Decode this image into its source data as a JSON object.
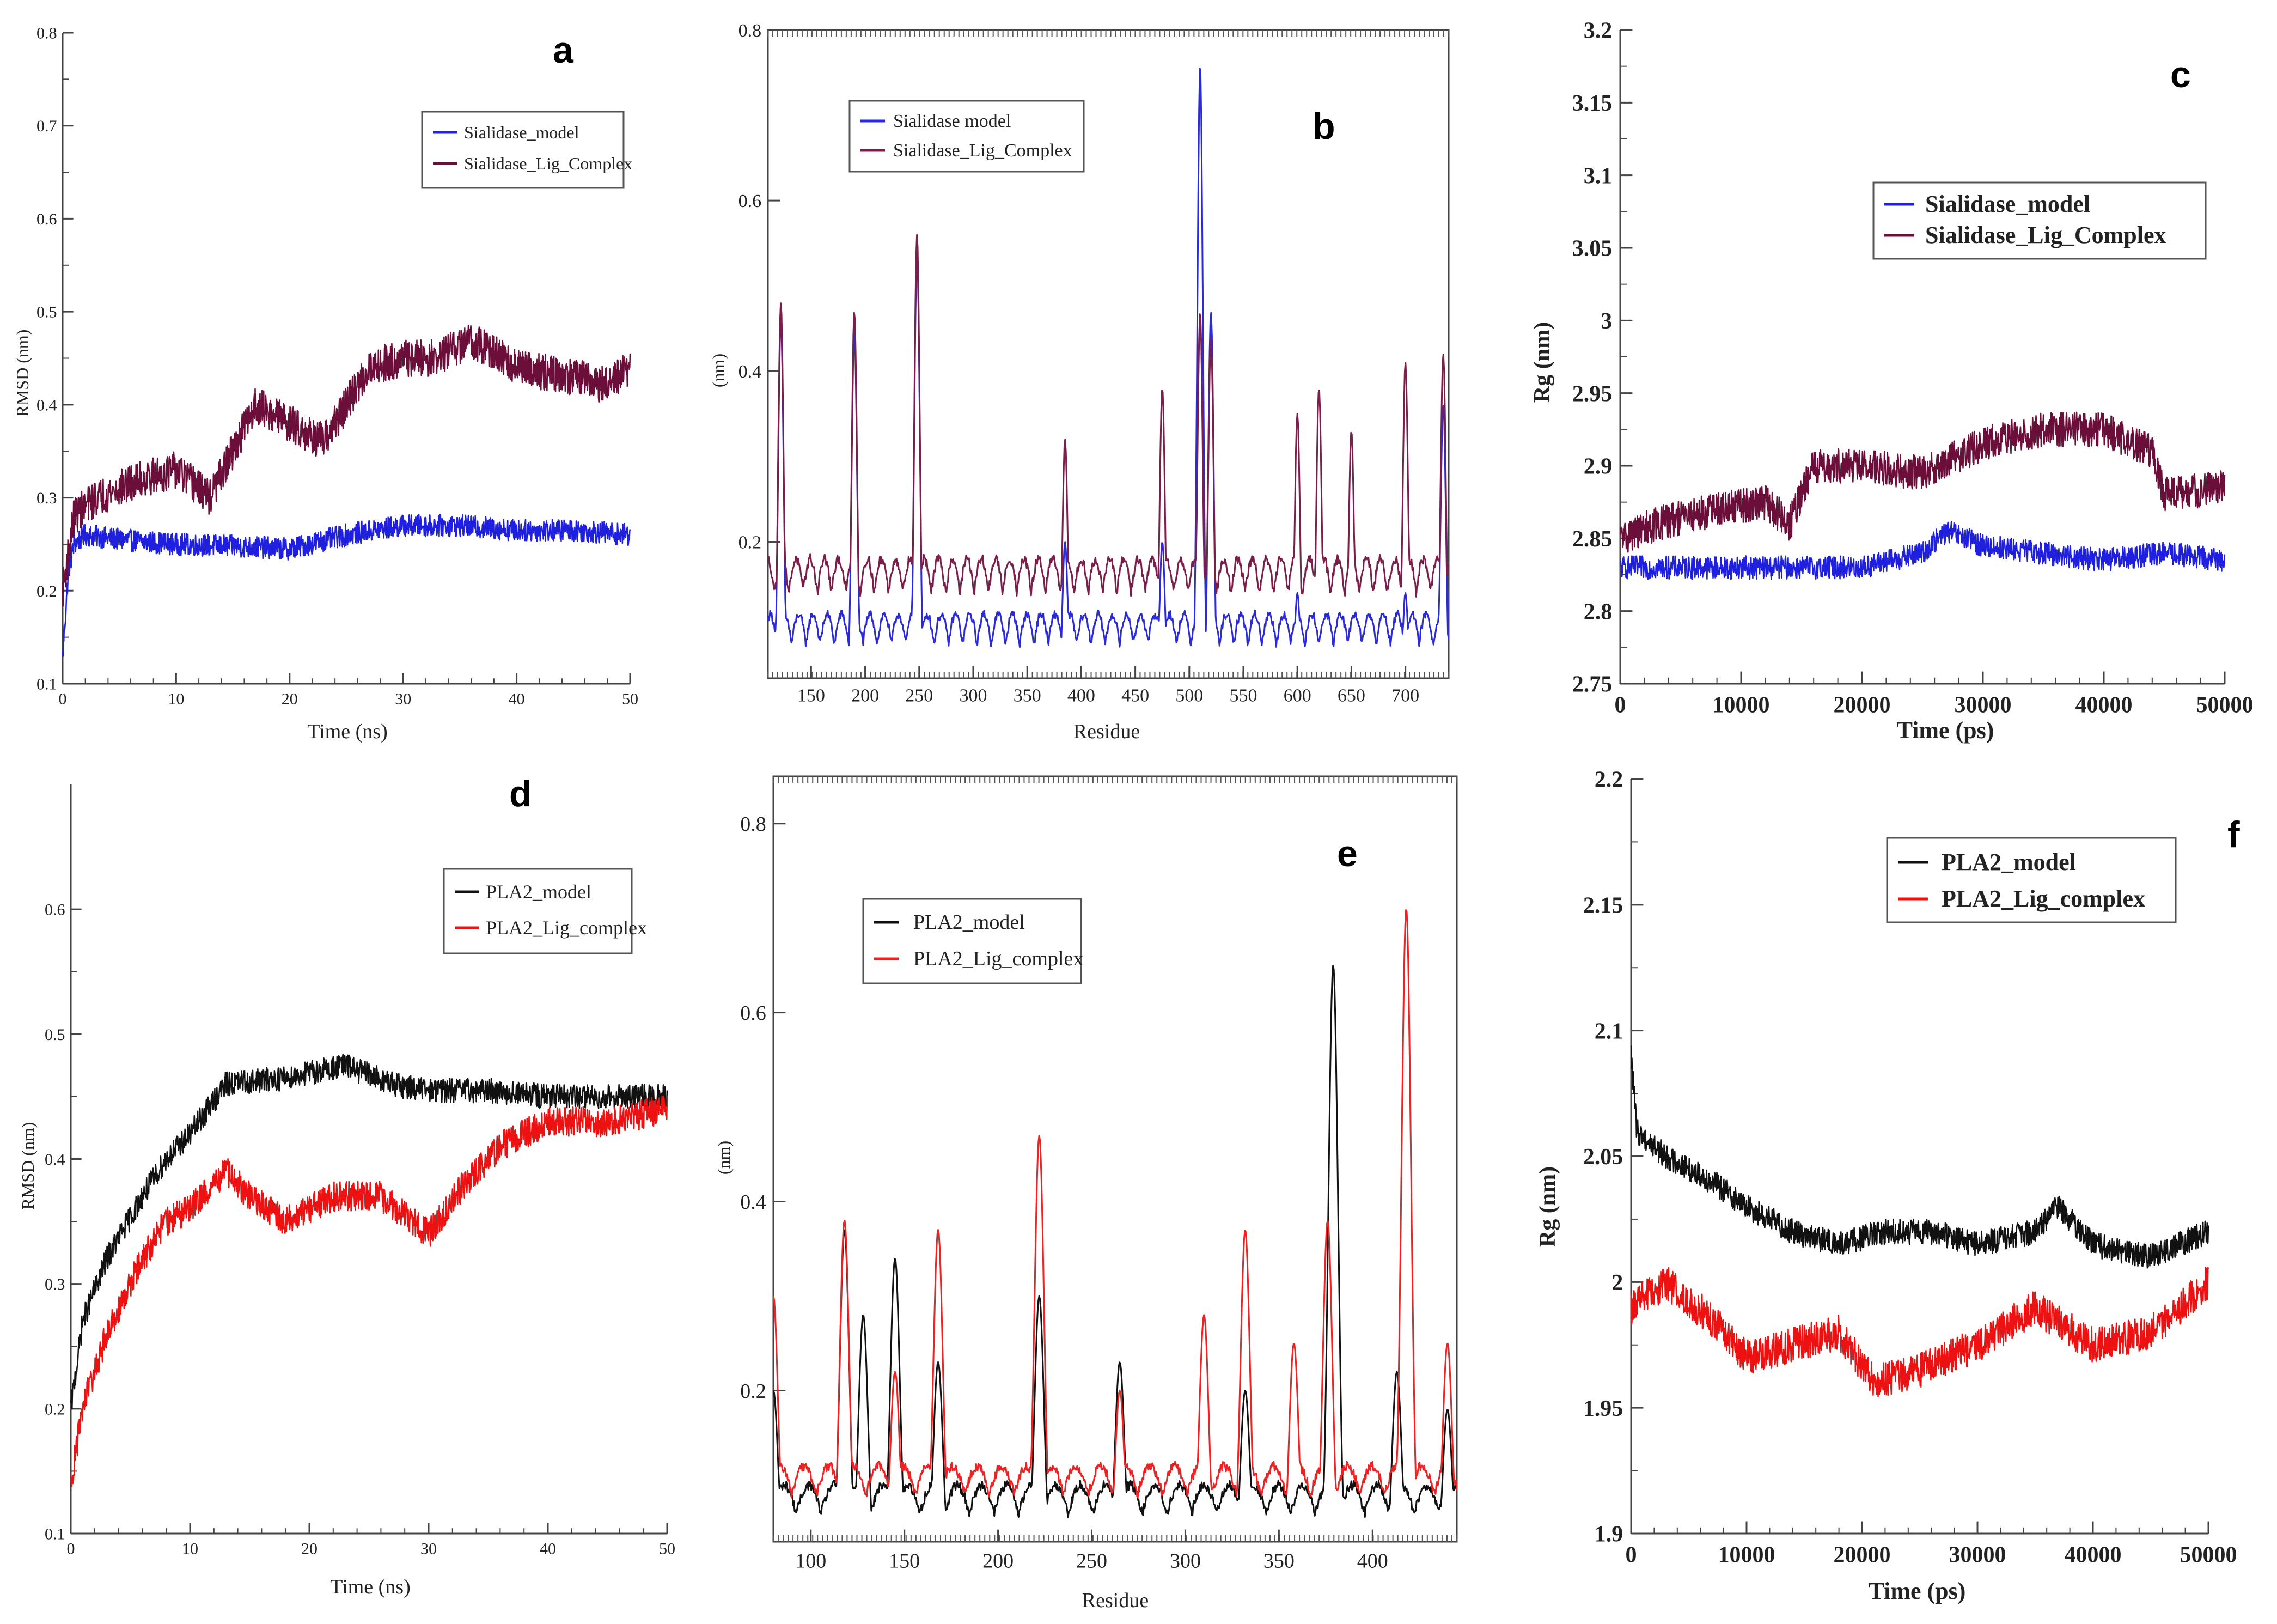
{
  "figure": {
    "background": "#ffffff",
    "series_colors": {
      "blue": "#1f1fe0",
      "maroon": "#6b0f3a",
      "black": "#111111",
      "red": "#ee1111"
    }
  },
  "chart_data": [
    {
      "id": "a",
      "panel_label": "a",
      "type": "line",
      "xlabel": "Time (ns)",
      "ylabel": "RMSD (nm)",
      "xlim": [
        0,
        50
      ],
      "ylim": [
        0.1,
        0.8
      ],
      "xticks": [
        0,
        10,
        20,
        30,
        40,
        50
      ],
      "yticks": [
        0.1,
        0.2,
        0.3,
        0.4,
        0.5,
        0.6,
        0.7,
        0.8
      ],
      "xtick_labels": [
        "0",
        "10",
        "20",
        "30",
        "40",
        "50"
      ],
      "ytick_labels": [
        "0.1",
        "0.2",
        "0.3",
        "0.4",
        "0.5",
        "0.6",
        "0.7",
        "0.8"
      ],
      "legend": [
        "Sialidase_model",
        "Sialidase_Lig_Complex"
      ],
      "series": [
        {
          "name": "Sialidase_model",
          "color": "#1f1fe0",
          "noise": 0.012,
          "x": [
            0,
            0.5,
            1,
            2,
            5,
            10,
            15,
            20,
            25,
            30,
            35,
            40,
            45,
            50
          ],
          "y": [
            0.13,
            0.22,
            0.25,
            0.26,
            0.255,
            0.25,
            0.248,
            0.245,
            0.26,
            0.27,
            0.27,
            0.265,
            0.265,
            0.26
          ]
        },
        {
          "name": "Sialidase_Lig_Complex",
          "color": "#6b0f3a",
          "noise": 0.02,
          "x": [
            0,
            1,
            3,
            7,
            10,
            13,
            15,
            17,
            20,
            23,
            25,
            27,
            30,
            33,
            36,
            40,
            45,
            48,
            50
          ],
          "y": [
            0.2,
            0.28,
            0.3,
            0.32,
            0.33,
            0.3,
            0.35,
            0.4,
            0.38,
            0.36,
            0.4,
            0.44,
            0.45,
            0.45,
            0.47,
            0.44,
            0.43,
            0.42,
            0.44
          ]
        }
      ]
    },
    {
      "id": "b",
      "panel_label": "b",
      "type": "line",
      "xlabel": "Residue",
      "ylabel": "(nm)",
      "xlim": [
        110,
        740
      ],
      "ylim": [
        0.04,
        0.8
      ],
      "xticks": [
        150,
        200,
        250,
        300,
        350,
        400,
        450,
        500,
        550,
        600,
        650,
        700
      ],
      "yticks": [
        0.2,
        0.4,
        0.6,
        0.8
      ],
      "xtick_labels": [
        "150",
        "200",
        "250",
        "300",
        "350",
        "400",
        "450",
        "500",
        "550",
        "600",
        "650",
        "700"
      ],
      "ytick_labels": [
        "0.2",
        "0.4",
        "0.6",
        "0.8"
      ],
      "legend": [
        "Sialidase model",
        "Sialidase_Lig_Complex"
      ],
      "series": [
        {
          "name": "Sialidase model",
          "color": "#2a2ad8",
          "baseline": 0.08,
          "amp": 0.035,
          "noise": 0.01,
          "peaks": [
            [
              122,
              0.46
            ],
            [
              190,
              0.45
            ],
            [
              248,
              0.54
            ],
            [
              385,
              0.2
            ],
            [
              475,
              0.2
            ],
            [
              510,
              0.76
            ],
            [
              520,
              0.47
            ],
            [
              600,
              0.14
            ],
            [
              700,
              0.14
            ],
            [
              735,
              0.36
            ]
          ]
        },
        {
          "name": "Sialidase_Lig_Complex",
          "color": "#7a1f4a",
          "baseline": 0.14,
          "amp": 0.04,
          "noise": 0.012,
          "peaks": [
            [
              122,
              0.48
            ],
            [
              190,
              0.47
            ],
            [
              248,
              0.56
            ],
            [
              385,
              0.32
            ],
            [
              475,
              0.38
            ],
            [
              510,
              0.47
            ],
            [
              520,
              0.44
            ],
            [
              600,
              0.35
            ],
            [
              620,
              0.38
            ],
            [
              650,
              0.33
            ],
            [
              700,
              0.41
            ],
            [
              735,
              0.42
            ]
          ]
        }
      ]
    },
    {
      "id": "c",
      "panel_label": "c",
      "type": "line",
      "xlabel": "Time (ps)",
      "ylabel": "Rg (nm)",
      "xlim": [
        0,
        50000
      ],
      "ylim": [
        2.75,
        3.2
      ],
      "xticks": [
        0,
        10000,
        20000,
        30000,
        40000,
        50000
      ],
      "yticks": [
        2.75,
        2.8,
        2.85,
        2.9,
        2.95,
        3.0,
        3.05,
        3.1,
        3.15,
        3.2
      ],
      "xtick_labels": [
        "0",
        "10000",
        "20000",
        "30000",
        "40000",
        "50000"
      ],
      "ytick_labels": [
        "2.75",
        "2.8",
        "2.85",
        "2.9",
        "2.95",
        "3",
        "3.05",
        "3.1",
        "3.15",
        "3.2"
      ],
      "legend": [
        "Sialidase_model",
        "Sialidase_Lig_Complex"
      ],
      "series": [
        {
          "name": "Sialidase_model",
          "color": "#1f1fe0",
          "noise": 0.008,
          "x": [
            0,
            5000,
            10000,
            15000,
            20000,
            25000,
            27000,
            30000,
            35000,
            40000,
            45000,
            50000
          ],
          "y": [
            2.83,
            2.83,
            2.83,
            2.83,
            2.83,
            2.84,
            2.855,
            2.845,
            2.84,
            2.835,
            2.84,
            2.835
          ]
        },
        {
          "name": "Sialidase_Lig_Complex",
          "color": "#6b0f3a",
          "noise": 0.012,
          "x": [
            0,
            3000,
            8000,
            12000,
            14000,
            16000,
            20000,
            25000,
            30000,
            35000,
            40000,
            44000,
            45000,
            50000
          ],
          "y": [
            2.85,
            2.86,
            2.87,
            2.875,
            2.86,
            2.9,
            2.9,
            2.895,
            2.915,
            2.925,
            2.925,
            2.91,
            2.88,
            2.885
          ]
        }
      ]
    },
    {
      "id": "d",
      "panel_label": "d",
      "type": "line",
      "xlabel": "Time (ns)",
      "ylabel": "RMSD (nm)",
      "xlim": [
        0,
        50
      ],
      "ylim": [
        0.1,
        0.7
      ],
      "xticks": [
        0,
        10,
        20,
        30,
        40,
        50
      ],
      "yticks": [
        0.1,
        0.2,
        0.3,
        0.4,
        0.5,
        0.6
      ],
      "xtick_labels": [
        "0",
        "10",
        "20",
        "30",
        "40",
        "50"
      ],
      "ytick_labels": [
        "0.1",
        "0.2",
        "0.3",
        "0.4",
        "0.5",
        "0.6"
      ],
      "legend": [
        "PLA2_model",
        "PLA2_Lig_complex"
      ],
      "series": [
        {
          "name": "PLA2_model",
          "color": "#111111",
          "noise": 0.01,
          "x": [
            0,
            1,
            3,
            6,
            8,
            10,
            13,
            18,
            23,
            27,
            30,
            35,
            40,
            45,
            50
          ],
          "y": [
            0.2,
            0.27,
            0.32,
            0.37,
            0.4,
            0.42,
            0.46,
            0.465,
            0.475,
            0.46,
            0.455,
            0.455,
            0.45,
            0.45,
            0.45
          ]
        },
        {
          "name": "PLA2_Lig_complex",
          "color": "#ee1111",
          "noise": 0.012,
          "x": [
            0,
            1,
            3,
            6,
            8,
            10,
            13,
            15,
            18,
            22,
            26,
            30,
            33,
            36,
            40,
            45,
            50
          ],
          "y": [
            0.14,
            0.2,
            0.26,
            0.32,
            0.35,
            0.36,
            0.39,
            0.37,
            0.35,
            0.37,
            0.37,
            0.34,
            0.38,
            0.41,
            0.43,
            0.43,
            0.44
          ]
        }
      ]
    },
    {
      "id": "e",
      "panel_label": "e",
      "type": "line",
      "xlabel": "Residue",
      "ylabel": "(nm)",
      "xlim": [
        80,
        445
      ],
      "ylim": [
        0.04,
        0.85
      ],
      "xticks": [
        100,
        150,
        200,
        250,
        300,
        350,
        400
      ],
      "yticks": [
        0.2,
        0.4,
        0.6,
        0.8
      ],
      "xtick_labels": [
        "100",
        "150",
        "200",
        "250",
        "300",
        "350",
        "400"
      ],
      "ytick_labels": [
        "0.2",
        "0.4",
        "0.6",
        "0.8"
      ],
      "legend": [
        "PLA2_model",
        "PLA2_Lig_complex"
      ],
      "series": [
        {
          "name": "PLA2_model",
          "color": "#111111",
          "baseline": 0.07,
          "amp": 0.03,
          "noise": 0.01,
          "peaks": [
            [
              80,
              0.2
            ],
            [
              118,
              0.37
            ],
            [
              128,
              0.28
            ],
            [
              145,
              0.34
            ],
            [
              168,
              0.23
            ],
            [
              222,
              0.3
            ],
            [
              265,
              0.23
            ],
            [
              332,
              0.2
            ],
            [
              379,
              0.65
            ],
            [
              413,
              0.22
            ],
            [
              440,
              0.18
            ]
          ]
        },
        {
          "name": "PLA2_Lig_complex",
          "color": "#ee2222",
          "baseline": 0.09,
          "amp": 0.03,
          "noise": 0.01,
          "peaks": [
            [
              80,
              0.3
            ],
            [
              118,
              0.38
            ],
            [
              145,
              0.22
            ],
            [
              168,
              0.37
            ],
            [
              222,
              0.47
            ],
            [
              265,
              0.2
            ],
            [
              310,
              0.28
            ],
            [
              332,
              0.37
            ],
            [
              358,
              0.25
            ],
            [
              376,
              0.38
            ],
            [
              418,
              0.71
            ],
            [
              440,
              0.25
            ]
          ]
        }
      ]
    },
    {
      "id": "f",
      "panel_label": "f",
      "type": "line",
      "xlabel": "Time (ps)",
      "ylabel": "Rg (nm)",
      "xlim": [
        0,
        50000
      ],
      "ylim": [
        1.9,
        2.2
      ],
      "xticks": [
        0,
        10000,
        20000,
        30000,
        40000,
        50000
      ],
      "yticks": [
        1.9,
        1.95,
        2.0,
        2.05,
        2.1,
        2.15,
        2.2
      ],
      "xtick_labels": [
        "0",
        "10000",
        "20000",
        "30000",
        "40000",
        "50000"
      ],
      "ytick_labels": [
        "1.9",
        "1.95",
        "2",
        "2.05",
        "2.1",
        "2.15",
        "2.2"
      ],
      "legend": [
        "PLA2_model",
        "PLA2_Lig_complex"
      ],
      "series": [
        {
          "name": "PLA2_model",
          "color": "#111111",
          "noise": 0.005,
          "x": [
            0,
            500,
            3000,
            7000,
            10000,
            14000,
            18000,
            22000,
            26000,
            30000,
            35000,
            37000,
            40000,
            45000,
            50000
          ],
          "y": [
            2.09,
            2.06,
            2.05,
            2.04,
            2.03,
            2.02,
            2.015,
            2.02,
            2.02,
            2.015,
            2.02,
            2.03,
            2.015,
            2.01,
            2.02
          ]
        },
        {
          "name": "PLA2_Lig_complex",
          "color": "#ee1111",
          "noise": 0.007,
          "x": [
            0,
            3000,
            7000,
            10000,
            14000,
            18000,
            21000,
            25000,
            30000,
            35000,
            40000,
            45000,
            50000
          ],
          "y": [
            1.99,
            2.0,
            1.985,
            1.97,
            1.975,
            1.98,
            1.96,
            1.965,
            1.975,
            1.99,
            1.975,
            1.98,
            2.0
          ]
        }
      ]
    }
  ]
}
